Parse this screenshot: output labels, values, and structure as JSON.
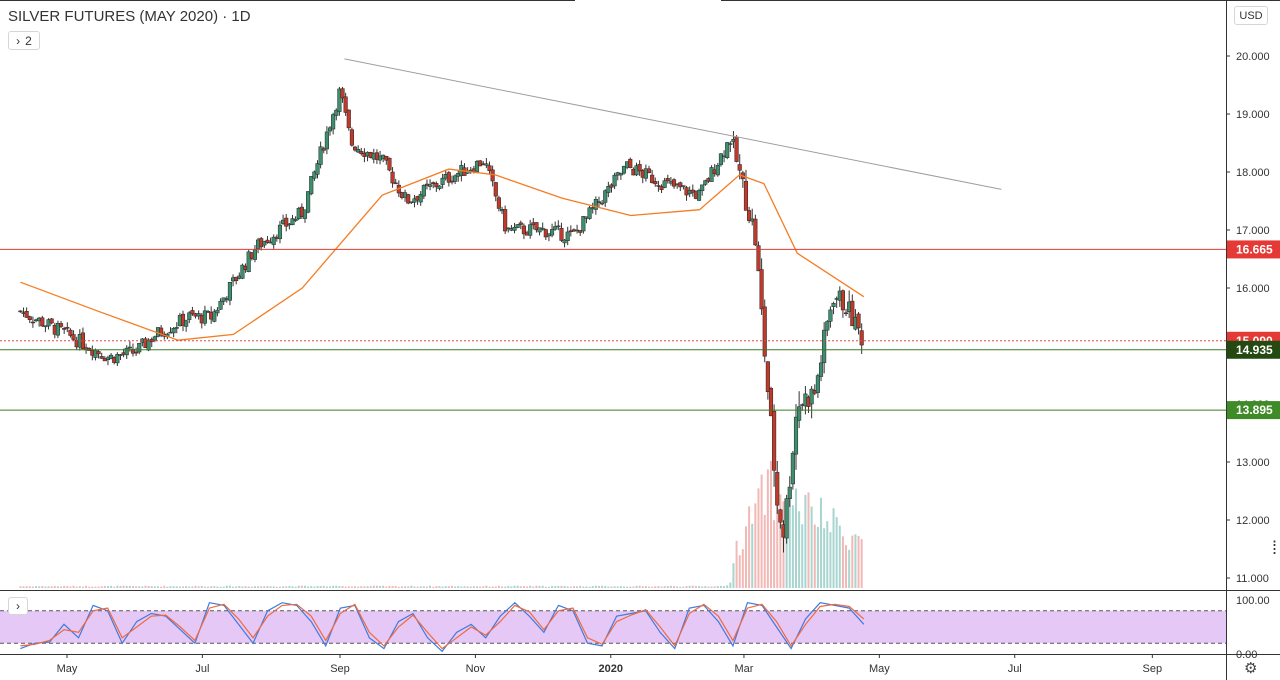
{
  "header": {
    "title": "SILVER FUTURES (MAY 2020) · 1D",
    "collapse_count": "2",
    "currency": "USD"
  },
  "colors": {
    "up": "#26a69a",
    "down": "#ef5350",
    "candle_up_fill": "#3d8f6f",
    "candle_down_fill": "#c0392b",
    "ma": "#f57c22",
    "resistance": "#e53935",
    "support": "#3b7d23",
    "trendline": "#9e9e9e",
    "stoch_k": "#3d7be0",
    "stoch_d": "#f0693b",
    "stoch_band": "#e6c8f7"
  },
  "chart_data": [
    {
      "type": "candlestick",
      "title": "SILVER FUTURES (MAY 2020) · 1D",
      "x_ticks": [
        "May",
        "Jul",
        "Sep",
        "Nov",
        "2020",
        "Mar",
        "May",
        "Jul",
        "Sep"
      ],
      "y_ticks": [
        "11.000",
        "12.000",
        "13.000",
        "14.000",
        "15.000",
        "16.000",
        "17.000",
        "18.000",
        "19.000",
        "20.000"
      ],
      "ylim": [
        10.7,
        20.3
      ],
      "waypoints": {
        "dates": [
          "2019-04-10",
          "2019-05-01",
          "2019-05-20",
          "2019-06-01",
          "2019-06-10",
          "2019-06-25",
          "2019-07-05",
          "2019-07-25",
          "2019-08-15",
          "2019-09-01",
          "2019-09-06",
          "2019-09-20",
          "2019-10-01",
          "2019-10-20",
          "2019-11-05",
          "2019-11-15",
          "2019-12-01",
          "2019-12-15",
          "2020-01-08",
          "2020-01-25",
          "2020-02-10",
          "2020-02-24",
          "2020-03-06",
          "2020-03-16",
          "2020-03-19",
          "2020-03-25",
          "2020-04-02",
          "2020-04-10",
          "2020-04-16",
          "2020-04-24"
        ],
        "close": [
          15.6,
          15.2,
          14.8,
          14.9,
          15.2,
          15.5,
          15.5,
          16.7,
          17.3,
          19.4,
          18.5,
          18.2,
          17.5,
          17.9,
          18.2,
          17.0,
          17.0,
          16.9,
          18.1,
          17.8,
          17.6,
          18.6,
          16.9,
          12.3,
          11.8,
          14.0,
          14.2,
          15.9,
          15.7,
          15.09
        ]
      },
      "moving_average": {
        "period": 50,
        "dates": [
          "2019-04-10",
          "2019-05-15",
          "2019-06-20",
          "2019-07-15",
          "2019-08-15",
          "2019-09-20",
          "2019-10-20",
          "2019-11-10",
          "2019-12-10",
          "2020-01-10",
          "2020-02-10",
          "2020-02-28",
          "2020-03-10",
          "2020-03-25",
          "2020-04-24"
        ],
        "values": [
          16.1,
          15.6,
          15.1,
          15.2,
          16.0,
          17.6,
          18.05,
          17.95,
          17.55,
          17.25,
          17.35,
          17.95,
          17.8,
          16.6,
          15.85
        ]
      },
      "horizontal_levels": [
        {
          "label": "16.665",
          "value": 16.665,
          "kind": "resistance"
        },
        {
          "label": "15.090",
          "value": 15.09,
          "kind": "last_price"
        },
        {
          "label": "14.935",
          "value": 14.935,
          "kind": "support"
        },
        {
          "label": "13.895",
          "value": 13.895,
          "kind": "support"
        }
      ],
      "trendline": {
        "start": {
          "date": "2019-09-03",
          "value": 19.95
        },
        "end": {
          "date": "2020-06-25",
          "value": 17.7
        }
      }
    },
    {
      "type": "line",
      "title": "",
      "y_ticks": [
        "0.00",
        "100.00"
      ],
      "ylim": [
        0,
        100
      ],
      "band": [
        20,
        80
      ],
      "series": [
        {
          "values": [
            10,
            20,
            22,
            55,
            30,
            90,
            80,
            20,
            60,
            75,
            70,
            45,
            20,
            95,
            90,
            55,
            20,
            80,
            95,
            90,
            60,
            15,
            85,
            90,
            30,
            10,
            60,
            75,
            30,
            5,
            40,
            55,
            30,
            70,
            95,
            70,
            40,
            90,
            80,
            20,
            15,
            70,
            75,
            80,
            40,
            10,
            85,
            90,
            60,
            15,
            95,
            90,
            50,
            10,
            65,
            95,
            90,
            85,
            55
          ]
        },
        {
          "values": [
            15,
            18,
            25,
            45,
            40,
            80,
            85,
            30,
            50,
            70,
            72,
            50,
            25,
            85,
            92,
            65,
            30,
            70,
            90,
            92,
            70,
            25,
            75,
            92,
            40,
            15,
            50,
            72,
            40,
            10,
            30,
            50,
            35,
            60,
            90,
            78,
            45,
            80,
            85,
            30,
            18,
            60,
            72,
            82,
            50,
            15,
            75,
            92,
            70,
            25,
            85,
            92,
            60,
            15,
            55,
            88,
            92,
            88,
            65
          ]
        }
      ]
    }
  ]
}
